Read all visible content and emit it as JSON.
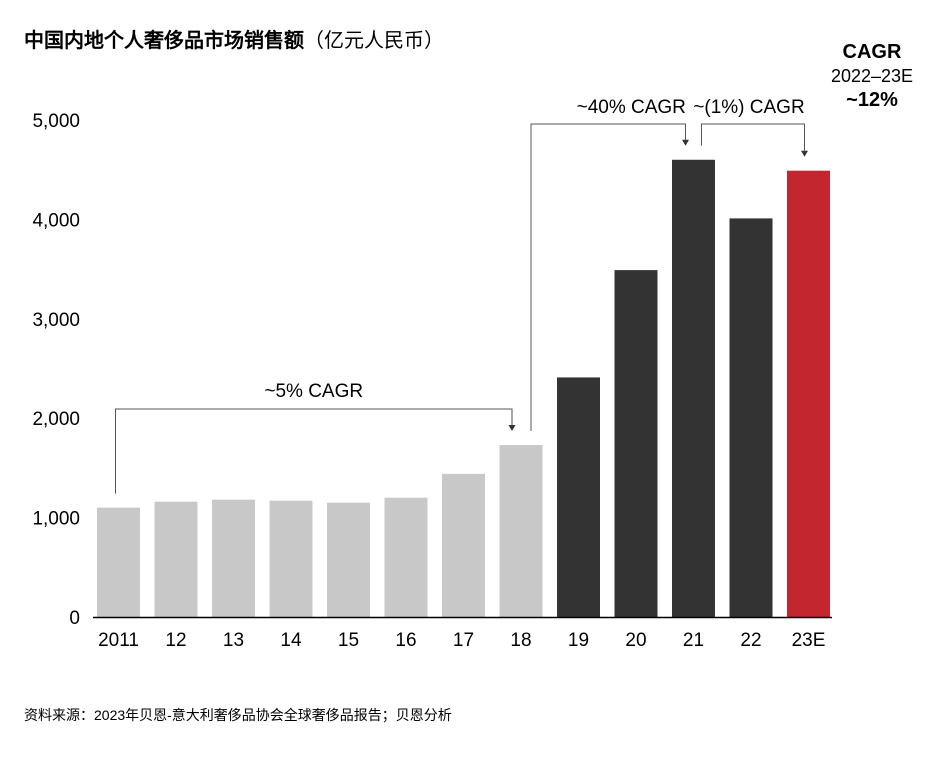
{
  "title": {
    "main": "中国内地个人奢侈品市场销售额",
    "unit": "（亿元人民币）"
  },
  "cagr_box": {
    "head": "CAGR",
    "period": "2022–23E",
    "value": "~12%"
  },
  "source": "资料来源：2023年贝恩-意大利奢侈品协会全球奢侈品报告；贝恩分析",
  "chart_data": {
    "type": "bar",
    "categories": [
      "2011",
      "12",
      "13",
      "14",
      "15",
      "16",
      "17",
      "18",
      "19",
      "20",
      "21",
      "22",
      "23E"
    ],
    "values": [
      1100,
      1160,
      1180,
      1170,
      1150,
      1200,
      1440,
      1730,
      2410,
      3490,
      4600,
      4010,
      4490
    ],
    "bar_colors": [
      "#c8c8c8",
      "#c8c8c8",
      "#c8c8c8",
      "#c8c8c8",
      "#c8c8c8",
      "#c8c8c8",
      "#c8c8c8",
      "#c8c8c8",
      "#333333",
      "#333333",
      "#333333",
      "#333333",
      "#c4262d"
    ],
    "ylim": [
      0,
      5000
    ],
    "yticks": [
      0,
      1000,
      2000,
      3000,
      4000,
      5000
    ],
    "ytick_labels": [
      "0",
      "1,000",
      "2,000",
      "3,000",
      "4,000",
      "5,000"
    ],
    "grid": false,
    "annotations": [
      {
        "text": "~5% CAGR",
        "from_index": 0,
        "to_index": 7
      },
      {
        "text": "~40% CAGR",
        "from_index": 7,
        "to_index": 10
      },
      {
        "text": "~(1%) CAGR",
        "from_index": 10,
        "to_index": 12
      }
    ]
  }
}
